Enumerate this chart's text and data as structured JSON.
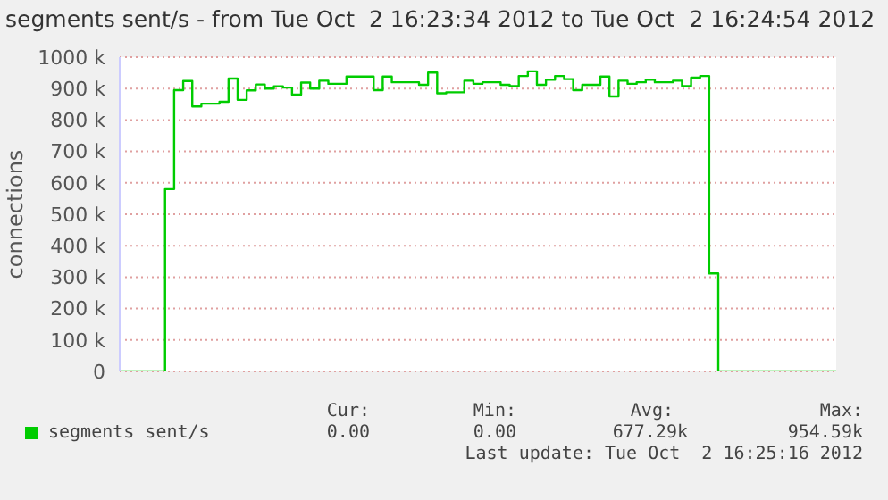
{
  "chart_data": {
    "type": "step",
    "title": "segments sent/s - from Tue Oct  2 16:23:34 2012 to Tue Oct  2 16:24:54 2012",
    "ylabel": "connections",
    "categories": [
      null,
      null,
      null,
      null,
      null,
      null,
      null,
      null,
      null,
      null,
      null,
      null,
      null,
      null,
      null,
      null,
      null,
      null,
      null,
      null,
      null,
      null,
      null,
      null,
      null,
      null,
      null,
      null,
      null,
      null,
      null,
      null,
      null,
      null,
      null,
      null,
      null,
      null,
      null,
      null,
      null,
      null,
      null,
      null,
      null,
      null,
      null,
      null,
      null,
      null,
      null,
      null,
      null,
      null,
      null,
      null,
      null,
      null,
      null,
      null,
      null,
      null,
      null,
      null,
      null,
      null,
      null,
      null,
      null,
      null,
      null,
      null,
      null,
      null,
      null,
      null,
      null,
      null,
      null,
      null
    ],
    "series": [
      {
        "name": "segments sent/s",
        "color": "#00cc00",
        "values": [
          0,
          0,
          0,
          0,
          0,
          580,
          895,
          924,
          843,
          852,
          852,
          858,
          932,
          864,
          894,
          913,
          900,
          907,
          903,
          881,
          919,
          900,
          925,
          915,
          915,
          938,
          938,
          938,
          895,
          938,
          920,
          920,
          920,
          912,
          951,
          885,
          888,
          888,
          925,
          915,
          920,
          920,
          912,
          908,
          940,
          955,
          912,
          928,
          940,
          930,
          895,
          912,
          912,
          938,
          875,
          925,
          915,
          920,
          928,
          920,
          920,
          925,
          908,
          935,
          940,
          312,
          0,
          0,
          0,
          0,
          0,
          0,
          0,
          0,
          0,
          0,
          0,
          0,
          0,
          0
        ]
      }
    ],
    "ylim": [
      0,
      1000
    ],
    "yticks": [
      0,
      {
        "value": 100,
        "label": "100 k"
      },
      {
        "value": 200,
        "label": "200 k"
      },
      {
        "value": 300,
        "label": "300 k"
      },
      {
        "value": 400,
        "label": "400 k"
      },
      {
        "value": 500,
        "label": "500 k"
      },
      {
        "value": 600,
        "label": "600 k"
      },
      {
        "value": 700,
        "label": "700 k"
      },
      {
        "value": 800,
        "label": "800 k"
      },
      {
        "value": 900,
        "label": "900 k"
      },
      {
        "value": 1000,
        "label": "1000 k"
      }
    ],
    "grid": "y",
    "legend": "bottom",
    "tick_labels": "y",
    "annotations": [
      "Cur:",
      "Min:",
      "Avg:",
      "Max:",
      "0.00",
      "0.00",
      "677.29k",
      "954.59k",
      "Last update: Tue Oct  2 16:25:16 2012"
    ]
  }
}
